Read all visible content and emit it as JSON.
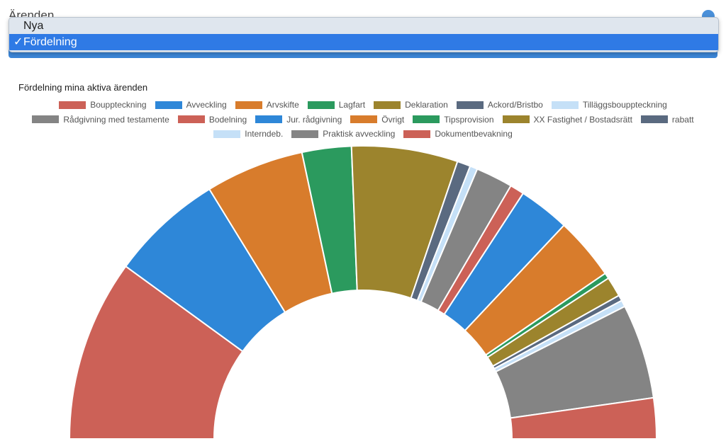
{
  "header": {
    "title": "Ärenden"
  },
  "dropdown": {
    "options": [
      {
        "label": "Nya",
        "selected": false
      },
      {
        "label": "Fördelning",
        "selected": true
      }
    ],
    "check_mark": "✓"
  },
  "chart_data": {
    "type": "pie",
    "variant": "half-doughnut",
    "title": "Fördelning mina aktiva ärenden",
    "legend_position": "top",
    "categories": [
      "Bouppteckning",
      "Avveckling",
      "Arvskifte",
      "Lagfart",
      "Deklaration",
      "Ackord/Bristbo",
      "Tilläggsbouppteckning",
      "Rådgivning med testamente",
      "Bodelning",
      "Jur. rådgivning",
      "Övrigt",
      "Tipsprovision",
      "XX Fastighet / Bostadsrätt",
      "rabatt",
      "Interndeb.",
      "Praktisk avveckling",
      "Dokumentbevakning"
    ],
    "colors": [
      "#cc6157",
      "#2e87d8",
      "#d87c2c",
      "#2b9a5e",
      "#9c842d",
      "#5a6a80",
      "#c5e0f7",
      "#848484",
      "#cc6157",
      "#2e87d8",
      "#d87c2c",
      "#2b9a5e",
      "#9c842d",
      "#5a6a80",
      "#c5e0f7",
      "#848484",
      "#cc6157"
    ],
    "legend_rows": [
      [
        0,
        1,
        2,
        3,
        4,
        5,
        6
      ],
      [
        7,
        8,
        9,
        10,
        11,
        12,
        13
      ],
      [
        14,
        15,
        16
      ]
    ],
    "values": [
      19.2,
      11.9,
      10.4,
      5.2,
      11.2,
      1.4,
      0.8,
      3.9,
      1.5,
      5.4,
      6.6,
      0.6,
      2.1,
      0.6,
      0.7,
      10.0,
      4.3
    ]
  }
}
